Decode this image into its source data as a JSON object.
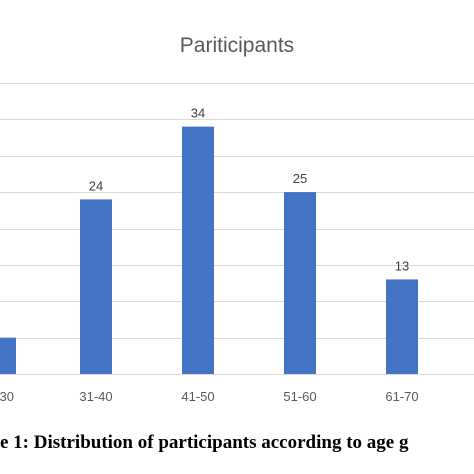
{
  "caption": "e 1: Distribution of participants according to age g",
  "chart_data": {
    "type": "bar",
    "title": "Pariticipants",
    "categories": [
      "30",
      "31-40",
      "41-50",
      "51-60",
      "61-70"
    ],
    "values": [
      5,
      24,
      34,
      25,
      13
    ],
    "data_labels": [
      "",
      "24",
      "34",
      "25",
      "13"
    ],
    "ylim": [
      0,
      40
    ],
    "gridlines": [
      0,
      5,
      10,
      15,
      20,
      25,
      30,
      35,
      40
    ],
    "grid": true,
    "bar_color": "#4472c4",
    "grid_color": "#d9d9d9"
  }
}
